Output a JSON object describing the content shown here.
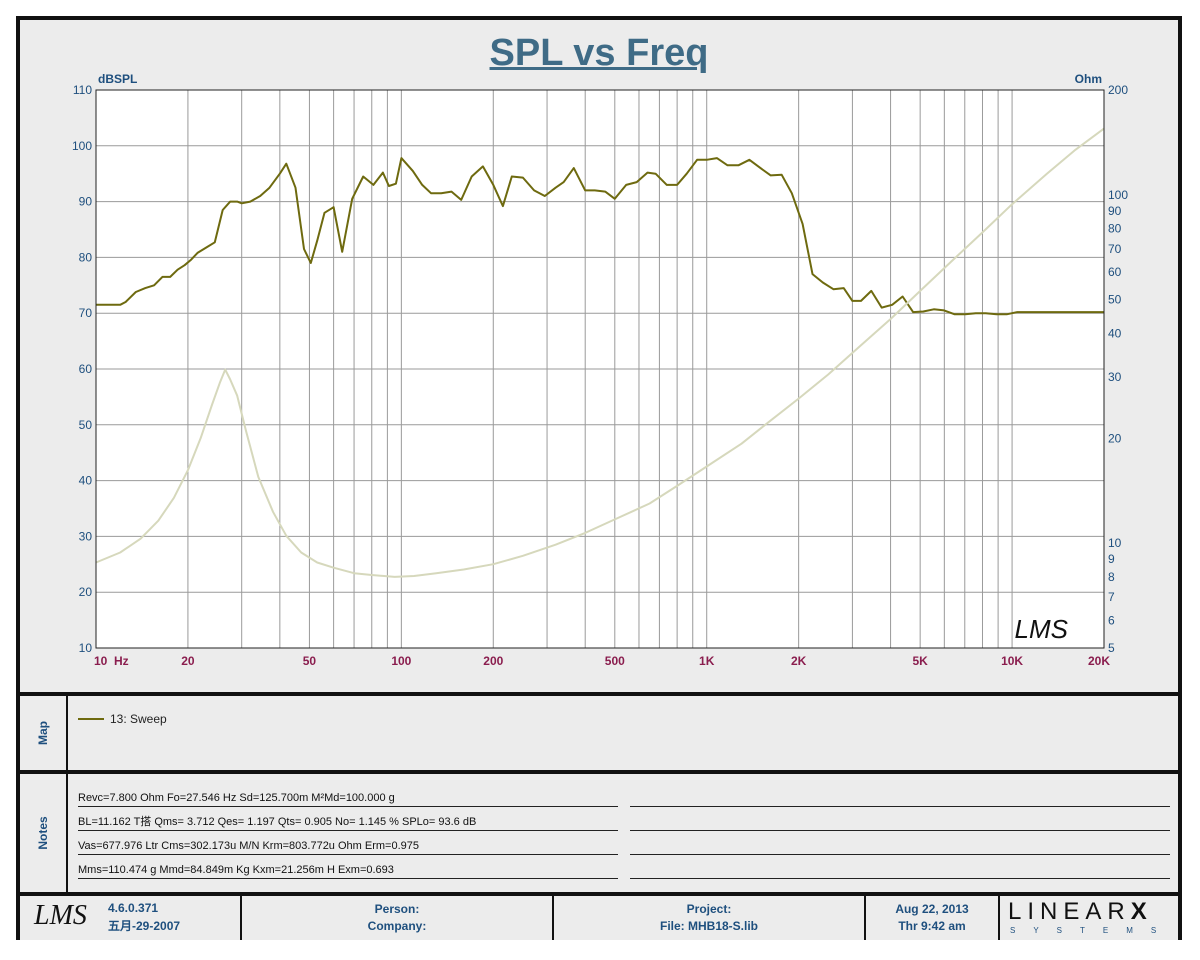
{
  "chart_data": {
    "type": "line",
    "title": "SPL vs Freq",
    "xlabel": "",
    "ylabel": "dBSPL",
    "y2label": "Ohm",
    "x_scale": "log",
    "xlim": [
      10,
      20000
    ],
    "ylim": [
      10,
      110
    ],
    "y2lim": [
      5,
      200
    ],
    "y2_scale": "log",
    "grid": true,
    "x_tick_values": [
      10,
      20,
      50,
      100,
      200,
      500,
      1000,
      2000,
      5000,
      10000,
      20000
    ],
    "x_tick_labels": [
      "10  Hz",
      "20",
      "50",
      "100",
      "200",
      "500",
      "1K",
      "2K",
      "5K",
      "10K",
      "20K"
    ],
    "y_ticks": [
      10,
      20,
      30,
      40,
      50,
      60,
      70,
      80,
      90,
      100,
      110
    ],
    "y2_tick_values": [
      5,
      6,
      7,
      8,
      9,
      10,
      20,
      30,
      40,
      50,
      60,
      70,
      80,
      90,
      100,
      200
    ],
    "y2_tick_labels": [
      "5",
      "6",
      "7",
      "8",
      "9",
      "10",
      "20",
      "30",
      "40",
      "50",
      "60",
      "70",
      "80",
      "90",
      "100",
      "200"
    ],
    "series": [
      {
        "name": "13: Sweep",
        "axis": "left",
        "color": "#6e6a0f",
        "x": [
          10,
          12,
          12.5,
          13.5,
          14.5,
          15.5,
          16.5,
          17.5,
          18.5,
          19.5,
          20.5,
          21.5,
          23,
          24.5,
          26,
          27.5,
          29,
          30,
          32,
          34.5,
          37,
          40,
          42,
          45,
          48,
          50.5,
          53,
          56,
          60,
          64,
          69,
          75,
          81,
          87,
          91,
          96,
          100,
          109,
          117,
          125,
          135,
          146,
          157,
          170,
          185,
          200,
          215,
          230,
          250,
          272,
          295,
          320,
          340,
          367,
          400,
          430,
          465,
          500,
          545,
          590,
          640,
          680,
          740,
          800,
          860,
          930,
          1000,
          1080,
          1170,
          1270,
          1380,
          1500,
          1620,
          1760,
          1900,
          2060,
          2220,
          2400,
          2600,
          2810,
          3000,
          3200,
          3460,
          3740,
          4050,
          4380,
          4740,
          5120,
          5540,
          5990,
          6490,
          7020,
          7600,
          8200,
          8900,
          9600,
          10400,
          11300,
          12200,
          13200,
          14300,
          15500,
          16700,
          18000,
          20000
        ],
        "y": [
          71.5,
          71.5,
          72,
          73.8,
          74.5,
          75,
          76.5,
          76.5,
          77.8,
          78.6,
          79.6,
          80.8,
          81.8,
          82.7,
          88.5,
          90,
          90,
          89.7,
          90,
          91,
          92.5,
          95,
          96.8,
          92.5,
          81.5,
          79,
          83,
          88,
          89,
          81,
          90.5,
          94.5,
          93,
          95.2,
          92.8,
          93.2,
          97.8,
          95.5,
          93,
          91.5,
          91.5,
          91.8,
          90.3,
          94.5,
          96.3,
          93,
          89.2,
          94.5,
          94.3,
          92,
          91,
          92.5,
          93.5,
          96,
          92,
          92,
          91.8,
          90.5,
          93,
          93.5,
          95.2,
          95,
          93,
          93,
          95,
          97.5,
          97.5,
          97.8,
          96.5,
          96.5,
          97.5,
          96,
          94.7,
          94.8,
          91.5,
          86,
          77,
          75.5,
          74.3,
          74.5,
          72.2,
          72.2,
          74,
          71,
          71.5,
          73,
          70.2,
          70.3,
          70.7,
          70.5,
          69.8,
          69.8,
          70,
          70,
          69.8,
          69.8,
          70.2,
          70.2,
          70.2,
          70.2,
          70.2,
          70.2,
          70.2,
          70.2,
          70.2
        ],
        "legend": true
      },
      {
        "axis": "right",
        "color": "#d6d8bc",
        "x": [
          10,
          12,
          14,
          16,
          18,
          20,
          22,
          24,
          25.5,
          26.5,
          27.5,
          29,
          31,
          34,
          38,
          42,
          47,
          53,
          60,
          70,
          80,
          95,
          110,
          130,
          160,
          200,
          250,
          320,
          400,
          500,
          650,
          800,
          1000,
          1300,
          1600,
          2000,
          2500,
          3200,
          4000,
          5000,
          6400,
          8000,
          10000,
          13000,
          16000,
          20000
        ],
        "y": [
          8.8,
          9.4,
          10.3,
          11.6,
          13.5,
          16.2,
          20,
          25,
          29,
          31.5,
          29.5,
          26.5,
          21,
          15.5,
          12.3,
          10.5,
          9.4,
          8.8,
          8.5,
          8.2,
          8.1,
          8,
          8.05,
          8.2,
          8.4,
          8.7,
          9.2,
          9.9,
          10.7,
          11.7,
          13,
          14.6,
          16.6,
          19.3,
          22.3,
          26,
          30.5,
          37,
          44,
          53,
          65,
          78,
          94,
          115,
          134,
          155
        ],
        "legend": false
      }
    ],
    "annotations": [
      "LMS"
    ]
  },
  "map": {
    "label": "Map",
    "legend_text": "13: Sweep"
  },
  "notes": {
    "label": "Notes",
    "lines": [
      "Revc=7.800 Ohm  Fo=27.546 Hz  Sd=125.700m M²Md=100.000 g",
      "BL=11.162 T搭  Qms= 3.712  Qes= 1.197  Qts= 0.905  No= 1.145 %  SPLo= 93.6 dB",
      "Vas=677.976 Ltr  Cms=302.173u M/N  Krm=803.772u Ohm  Erm=0.975",
      "Mms=110.474 g  Mmd=84.849m Kg  Kxm=21.256m H  Exm=0.693"
    ]
  },
  "footer": {
    "logo_text": "LMS",
    "version": "4.6.0.371",
    "version_date": "五月-29-2007",
    "person_label": "Person:",
    "company_label": "Company:",
    "project_label": "Project:",
    "file_label": "File: MHB18-S.lib",
    "date_line1": "Aug 22, 2013",
    "date_line2": "Thr  9:42 am",
    "brand_main": "LINEAR",
    "brand_x": "X",
    "brand_sub": "SYSTEMS"
  }
}
